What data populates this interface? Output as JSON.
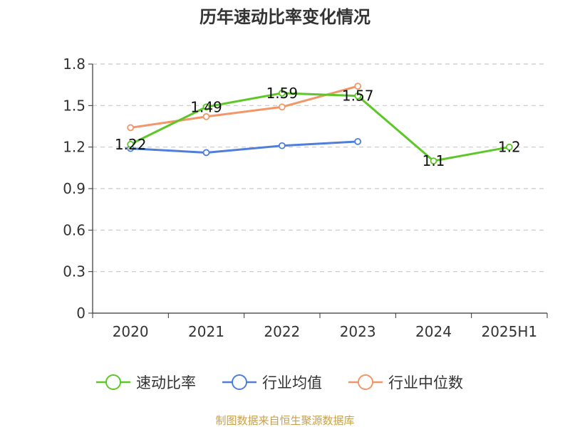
{
  "chart_data": {
    "type": "line",
    "title": "历年速动比率变化情况",
    "categories": [
      "2020",
      "2021",
      "2022",
      "2023",
      "2024",
      "2025H1"
    ],
    "ylim": [
      0,
      1.8
    ],
    "yticks": [
      "0",
      "0.3",
      "0.6",
      "0.9",
      "1.2",
      "1.5",
      "1.8"
    ],
    "grid": true,
    "legend_position": "bottom",
    "series": [
      {
        "name": "速动比率",
        "color": "#5cc727",
        "values": [
          1.22,
          1.49,
          1.59,
          1.57,
          1.1,
          1.2
        ],
        "labels": [
          "1.22",
          "1.49",
          "1.59",
          "1.57",
          "1.1",
          "1.2"
        ]
      },
      {
        "name": "行业均值",
        "color": "#4f7fd9",
        "values": [
          1.19,
          1.16,
          1.21,
          1.24,
          null,
          null
        ]
      },
      {
        "name": "行业中位数",
        "color": "#f29668",
        "values": [
          1.34,
          1.42,
          1.49,
          1.64,
          null,
          null
        ]
      }
    ]
  },
  "source": "制图数据来自恒生聚源数据库"
}
